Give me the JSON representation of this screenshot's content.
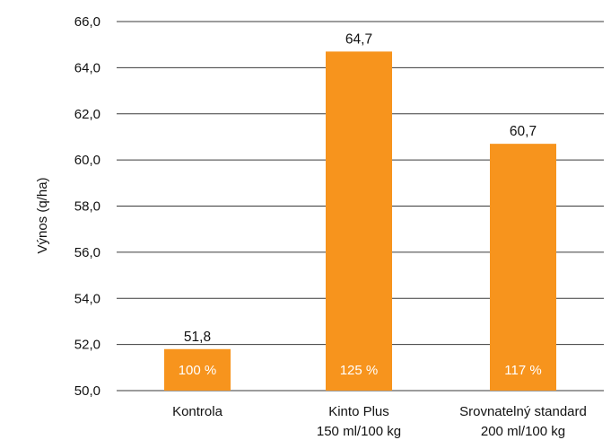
{
  "chart_data": {
    "type": "bar",
    "categories": [
      [
        "Kontrola"
      ],
      [
        "Kinto Plus",
        "150 ml/100 kg"
      ],
      [
        "Srovnatelný standard",
        "200 ml/100 kg"
      ]
    ],
    "values": [
      51.8,
      64.7,
      60.7
    ],
    "value_labels": [
      "51,8",
      "64,7",
      "60,7"
    ],
    "bar_labels": [
      "100 %",
      "125 %",
      "117 %"
    ],
    "ylabel": "Výnos (q/ha)",
    "ylim": [
      50,
      66
    ],
    "yticks": [
      50,
      52,
      54,
      56,
      58,
      60,
      62,
      64,
      66
    ],
    "ytick_labels": [
      "50,0",
      "52,0",
      "54,0",
      "56,0",
      "58,0",
      "60,0",
      "62,0",
      "64,0",
      "66,0"
    ],
    "grid": true,
    "colors": {
      "bar": "#f7941d",
      "grid": "#3a3a3a",
      "text": "#111111",
      "bar_label": "#ffffff"
    }
  }
}
